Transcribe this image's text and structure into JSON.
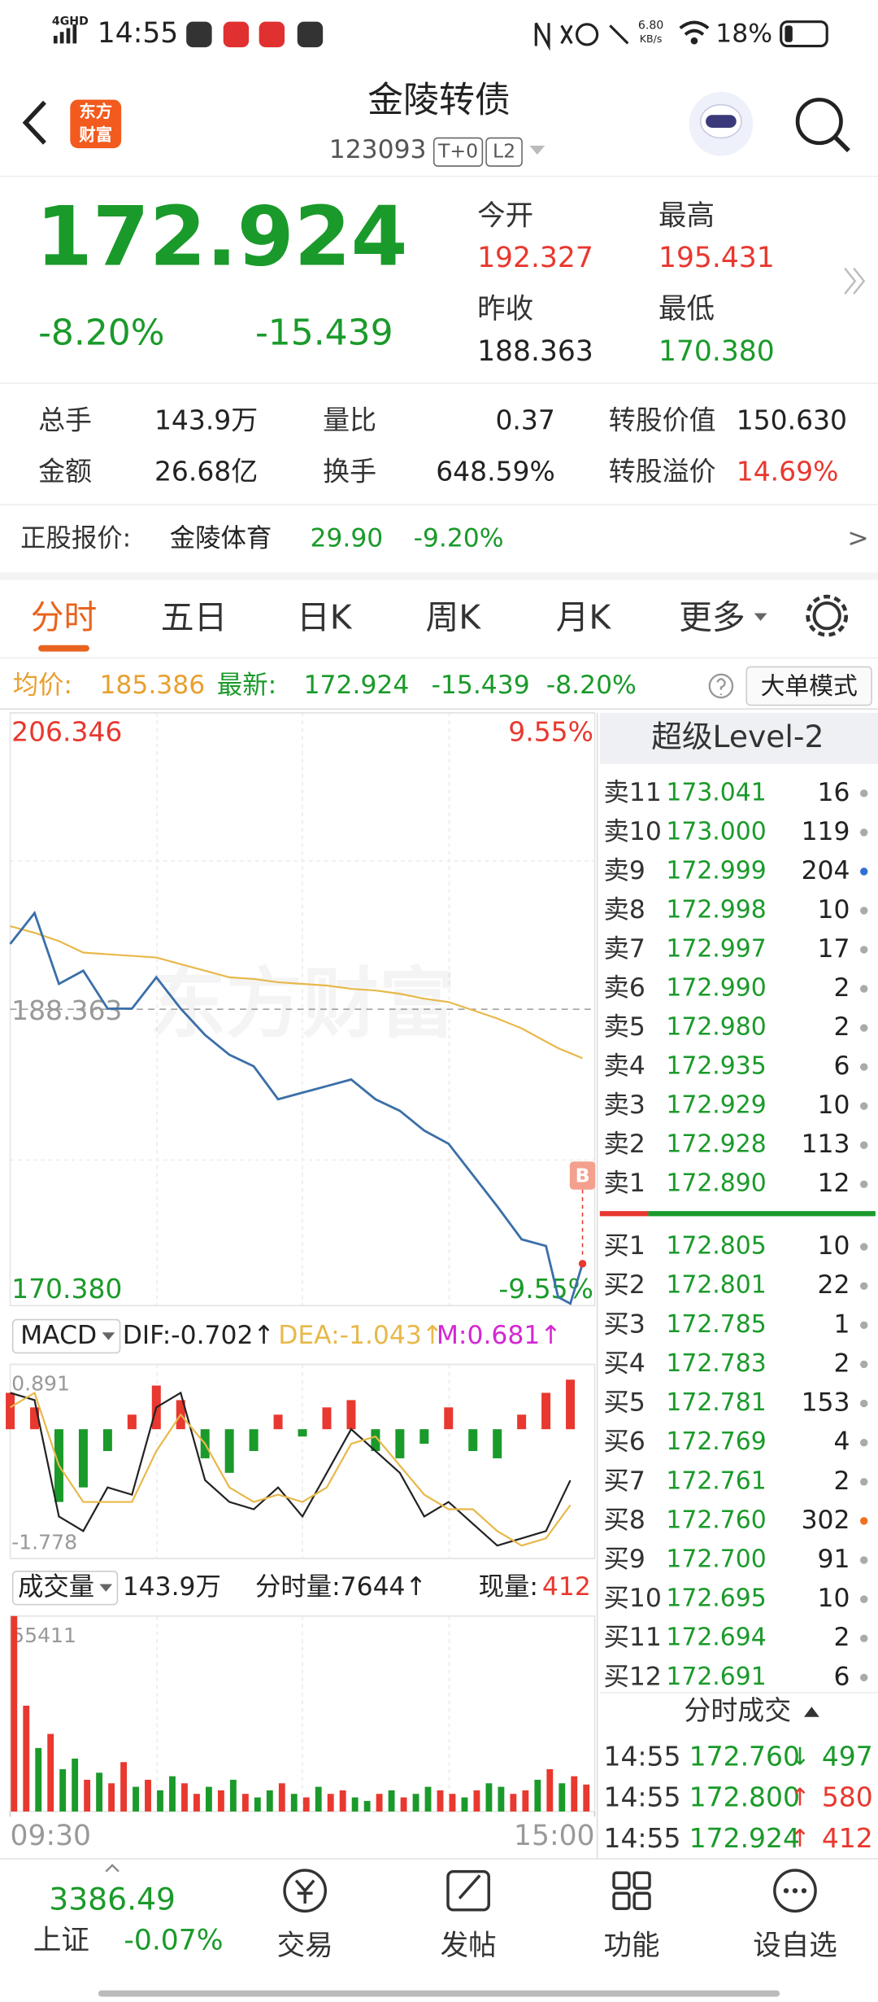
{
  "status_bar": {
    "network": "4GHD",
    "time": "14:55",
    "speed": "6.80",
    "speed_unit": "KB/s",
    "battery": "18%"
  },
  "header": {
    "logo_lines": [
      "东方",
      "财富"
    ],
    "title": "金陵转债",
    "code": "123093",
    "badges": [
      "T+0",
      "L2"
    ]
  },
  "quote": {
    "price": "172.924",
    "change_pct": "-8.20%",
    "change": "-15.439",
    "fields": [
      {
        "label": "今开",
        "value": "192.327",
        "color": "#e8382f"
      },
      {
        "label": "最高",
        "value": "195.431",
        "color": "#e8382f"
      },
      {
        "label": "昨收",
        "value": "188.363",
        "color": "#222222"
      },
      {
        "label": "最低",
        "value": "170.380",
        "color": "#1a9a2a"
      }
    ]
  },
  "stats": [
    [
      {
        "label": "总手",
        "value": "143.9万"
      },
      {
        "label": "量比",
        "value": "0.37"
      },
      {
        "label": "转股价值",
        "value": "150.630"
      }
    ],
    [
      {
        "label": "金额",
        "value": "26.68亿"
      },
      {
        "label": "换手",
        "value": "648.59%"
      },
      {
        "label": "转股溢价",
        "value": "14.69%",
        "color": "#e8382f"
      }
    ]
  ],
  "stock": {
    "label": "正股报价:",
    "name": "金陵体育",
    "price": "29.90",
    "change_pct": "-9.20%",
    "more": ">"
  },
  "tabs": [
    {
      "label": "分时",
      "active": true
    },
    {
      "label": "五日"
    },
    {
      "label": "日K"
    },
    {
      "label": "周K"
    },
    {
      "label": "月K"
    },
    {
      "label": "更多"
    }
  ],
  "summary": {
    "avg_label": "均价:",
    "avg": "185.386",
    "last_label": "最新:",
    "last": "172.924",
    "change": "-15.439",
    "change_pct": "-8.20%",
    "mode": "大单模式"
  },
  "chart_data": [
    {
      "type": "line",
      "watermark": "东方财富",
      "marker": "B",
      "xlim": [
        0,
        240
      ],
      "ylim": [
        170.38,
        206.346
      ],
      "yticks": [
        206.346,
        188.363,
        {
          "value": 170.38,
          "label": "170.380"
        }
      ],
      "ytick_colors": [
        "#e8382f",
        "#999999",
        "#1a9a2a"
      ],
      "y2lim": [
        -9.55,
        9.55
      ],
      "y2ticks": [
        {
          "value": 9.55,
          "label": "9.55%"
        },
        {
          "value": -9.55,
          "label": "-9.55%"
        }
      ],
      "y2tick_colors": [
        "#e8382f",
        "#1a9a2a"
      ],
      "x": [
        0,
        10,
        20,
        30,
        40,
        50,
        60,
        70,
        80,
        90,
        100,
        110,
        120,
        130,
        140,
        150,
        160,
        170,
        180,
        190,
        200,
        210,
        220,
        225,
        230,
        235
      ],
      "series": [
        {
          "color": "#3b6fa8",
          "values": [
            192.327,
            194.2,
            189.9,
            190.7,
            188.4,
            188.4,
            190.3,
            188.4,
            186.8,
            185.6,
            184.9,
            182.9,
            183.3,
            183.7,
            184.1,
            182.9,
            182.2,
            181.0,
            180.2,
            178.3,
            176.4,
            174.4,
            174.0,
            170.9,
            170.5,
            172.924
          ]
        },
        {
          "color": "#e8b84a",
          "values": [
            193.4,
            193.0,
            192.5,
            191.8,
            191.7,
            191.6,
            191.5,
            191.1,
            190.7,
            190.3,
            190.2,
            190.0,
            189.9,
            189.8,
            189.6,
            189.5,
            189.3,
            189.0,
            188.8,
            188.3,
            187.8,
            187.2,
            186.4,
            186.0,
            185.7,
            185.386
          ]
        }
      ]
    },
    {
      "type": "macd",
      "name": "MACD",
      "xlim": [
        0,
        240
      ],
      "ylim": [
        -1.778,
        0.891
      ],
      "yticks": [
        0.891,
        -1.778
      ],
      "x": [
        0,
        10,
        20,
        30,
        40,
        50,
        60,
        70,
        80,
        90,
        100,
        110,
        120,
        130,
        140,
        150,
        160,
        170,
        180,
        190,
        200,
        210,
        220,
        230
      ],
      "series": [
        {
          "legend": "DIF:-0.702↑",
          "color": "#222222",
          "values": [
            0.5,
            0.4,
            -1.2,
            -1.4,
            -0.8,
            -0.9,
            0.3,
            0.5,
            -0.7,
            -1.0,
            -1.1,
            -0.8,
            -1.2,
            -0.6,
            0.0,
            -0.3,
            -0.6,
            -1.2,
            -1.0,
            -1.3,
            -1.6,
            -1.5,
            -1.4,
            -0.702
          ]
        },
        {
          "legend": "DEA:-1.043↑",
          "color": "#e8b84a",
          "values": [
            0.3,
            0.5,
            -0.5,
            -1.0,
            -1.0,
            -1.0,
            -0.3,
            0.2,
            -0.2,
            -0.8,
            -1.0,
            -0.9,
            -1.0,
            -0.8,
            -0.2,
            -0.1,
            -0.5,
            -0.9,
            -1.1,
            -1.1,
            -1.4,
            -1.6,
            -1.5,
            -1.043
          ]
        }
      ],
      "histogram": {
        "legend": "M:0.681↑",
        "color": "#d228d2",
        "up_color": "#e8382f",
        "down_color": "#1a9a2a",
        "values": [
          0.5,
          0.3,
          -1.0,
          -0.8,
          -0.3,
          0.2,
          0.6,
          0.4,
          -0.4,
          -0.6,
          -0.3,
          0.2,
          -0.1,
          0.3,
          0.4,
          -0.3,
          -0.4,
          -0.2,
          0.3,
          -0.3,
          -0.4,
          0.2,
          0.5,
          0.681
        ]
      }
    },
    {
      "type": "bar",
      "title": "成交量",
      "total": "143.9万",
      "minute_volume": "分时量:7644↑",
      "current_label": "现量:",
      "current": "412",
      "xlim": [
        0,
        240
      ],
      "xticks": [
        {
          "value": 0,
          "label": "09:30"
        },
        {
          "value": 240,
          "label": "15:00"
        }
      ],
      "ylim": [
        0,
        55411
      ],
      "yticks": [
        55411
      ],
      "x": [
        0,
        5,
        10,
        15,
        20,
        25,
        30,
        35,
        40,
        45,
        50,
        55,
        60,
        65,
        70,
        75,
        80,
        85,
        90,
        95,
        100,
        105,
        110,
        115,
        120,
        125,
        130,
        135,
        140,
        145,
        150,
        155,
        160,
        165,
        170,
        175,
        180,
        185,
        190,
        195,
        200,
        205,
        210,
        215,
        220,
        225,
        230,
        235
      ],
      "values": [
        55411,
        30000,
        18000,
        22000,
        12000,
        15000,
        9000,
        11000,
        8000,
        14000,
        7000,
        9000,
        6000,
        10000,
        8000,
        5000,
        7000,
        6000,
        9000,
        5000,
        4000,
        6000,
        8000,
        5000,
        4000,
        7000,
        5000,
        6000,
        4000,
        3000,
        5000,
        6000,
        4000,
        5000,
        7000,
        6000,
        5000,
        4000,
        6000,
        8000,
        7000,
        5000,
        6000,
        9000,
        12000,
        8000,
        10000,
        7644
      ],
      "colors": [
        "#e8382f",
        "#e8382f",
        "#1a9a2a",
        "#e8382f",
        "#1a9a2a",
        "#1a9a2a",
        "#e8382f",
        "#1a9a2a",
        "#e8382f",
        "#e8382f",
        "#1a9a2a",
        "#e8382f",
        "#1a9a2a",
        "#1a9a2a",
        "#e8382f",
        "#e8382f",
        "#1a9a2a",
        "#e8382f",
        "#1a9a2a",
        "#e8382f",
        "#1a9a2a",
        "#1a9a2a",
        "#e8382f",
        "#1a9a2a",
        "#e8382f",
        "#1a9a2a",
        "#e8382f",
        "#e8382f",
        "#1a9a2a",
        "#1a9a2a",
        "#e8382f",
        "#1a9a2a",
        "#e8382f",
        "#1a9a2a",
        "#1a9a2a",
        "#e8382f",
        "#e8382f",
        "#1a9a2a",
        "#e8382f",
        "#1a9a2a",
        "#1a9a2a",
        "#e8382f",
        "#e8382f",
        "#1a9a2a",
        "#e8382f",
        "#1a9a2a",
        "#e8382f",
        "#e8382f"
      ]
    }
  ],
  "order_book": {
    "title": "超级Level-2",
    "asks": [
      {
        "label": "卖11",
        "price": "173.041",
        "volume": 16
      },
      {
        "label": "卖10",
        "price": "173.000",
        "volume": 119
      },
      {
        "label": "卖9",
        "price": "172.999",
        "volume": 204,
        "dot": "#2f6fd6"
      },
      {
        "label": "卖8",
        "price": "172.998",
        "volume": 10
      },
      {
        "label": "卖7",
        "price": "172.997",
        "volume": 17
      },
      {
        "label": "卖6",
        "price": "172.990",
        "volume": 2
      },
      {
        "label": "卖5",
        "price": "172.980",
        "volume": 2
      },
      {
        "label": "卖4",
        "price": "172.935",
        "volume": 6
      },
      {
        "label": "卖3",
        "price": "172.929",
        "volume": 10
      },
      {
        "label": "卖2",
        "price": "172.928",
        "volume": 113
      },
      {
        "label": "卖1",
        "price": "172.890",
        "volume": 12
      }
    ],
    "bids": [
      {
        "label": "买1",
        "price": "172.805",
        "volume": 10
      },
      {
        "label": "买2",
        "price": "172.801",
        "volume": 22
      },
      {
        "label": "买3",
        "price": "172.785",
        "volume": 1
      },
      {
        "label": "买4",
        "price": "172.783",
        "volume": 2
      },
      {
        "label": "买5",
        "price": "172.781",
        "volume": 153
      },
      {
        "label": "买6",
        "price": "172.769",
        "volume": 4
      },
      {
        "label": "买7",
        "price": "172.761",
        "volume": 2
      },
      {
        "label": "买8",
        "price": "172.760",
        "volume": 302,
        "dot": "#f07020"
      },
      {
        "label": "买9",
        "price": "172.700",
        "volume": 91
      },
      {
        "label": "买10",
        "price": "172.695",
        "volume": 10
      },
      {
        "label": "买11",
        "price": "172.694",
        "volume": 2
      },
      {
        "label": "买12",
        "price": "172.691",
        "volume": 6
      }
    ]
  },
  "trades": {
    "title": "分时成交",
    "price_color": "#1a9a2a",
    "rows": [
      {
        "time": "14:55",
        "price": "172.760",
        "arrow": "↓",
        "volume": 497,
        "color": "#1a9a2a"
      },
      {
        "time": "14:55",
        "price": "172.800",
        "arrow": "↑",
        "volume": 580,
        "color": "#e8382f"
      },
      {
        "time": "14:55",
        "price": "172.924",
        "arrow": "↑",
        "volume": 412,
        "color": "#e8382f"
      }
    ]
  },
  "bottom_nav": {
    "index": {
      "value": "3386.49",
      "name": "上证",
      "change": "-0.07%"
    },
    "items": [
      "交易",
      "发帖",
      "功能",
      "设自选"
    ]
  }
}
